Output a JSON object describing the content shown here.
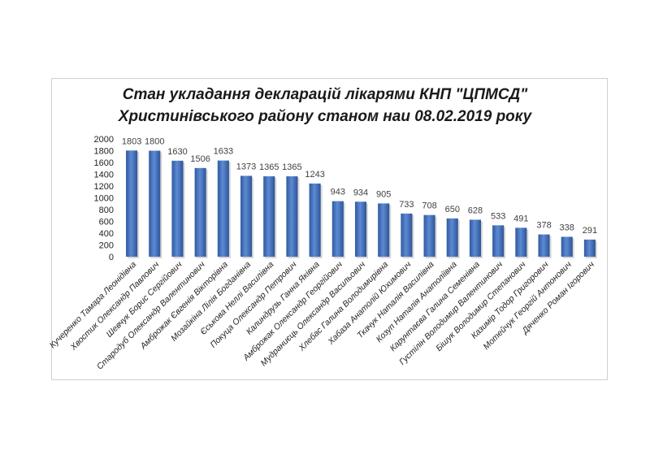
{
  "chart_data": {
    "type": "bar",
    "title": [
      "Стан укладання декларацій лікарями КНП \"ЦПМСД\"",
      "Христинівського району станом наи 08.02.2019 року"
    ],
    "xlabel": "",
    "ylabel": "",
    "ylim": [
      0,
      2000
    ],
    "y_ticks": [
      0,
      200,
      400,
      600,
      800,
      1000,
      1200,
      1400,
      1600,
      1800,
      2000
    ],
    "grid": false,
    "bar_color": "#4a78c2",
    "categories": [
      "Кучеренко Тамара Леонідівна",
      "Хвостик Олександр Павлович",
      "Шевчук Борис Сергійович",
      "Стародуб Олександр Валентинович",
      "Амброжак Євгенія Вікторівна",
      "Мозайкіна Лілія Богданівна",
      "Єськова Неллі Василівна",
      "Покуца Олександр Петрович",
      "Калиндрузь Ганна Яківна",
      "Амброжак Олександр Георгійович",
      "Мудраниєць Олександр Васильович",
      "Хлебас Галина Володимирівна",
      "Хабаза Анатолій Юхимович",
      "Ткачук Наталія Василівна",
      "Козуп Наталія Анатоліївна",
      "Карунтаєва Галина Семенівна",
      "Густілін Володимир Валентинович",
      "Бішук Володимир Степанович",
      "Казимір Тодор Григорович",
      "Мотейчук Георгій Антонович",
      "Дяченко Роман Ігорович"
    ],
    "values": [
      1803,
      1800,
      1630,
      1506,
      1633,
      1373,
      1365,
      1365,
      1243,
      943,
      934,
      905,
      733,
      708,
      650,
      628,
      533,
      491,
      378,
      338,
      291
    ]
  }
}
